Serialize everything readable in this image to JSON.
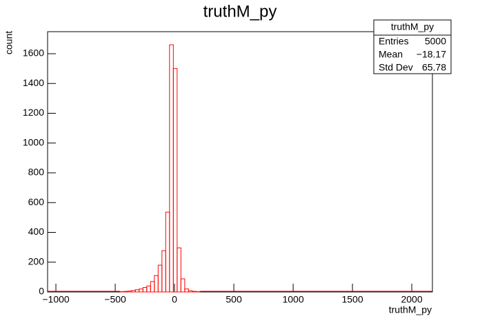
{
  "chart_data": {
    "type": "histogram",
    "title": "truthM_py",
    "x_label": "truthM_py",
    "y_label": "count",
    "color": "#ff0000",
    "bins": [
      -458,
      -426,
      -394,
      -362,
      -330,
      -298,
      -266,
      -234,
      -202,
      -170,
      -138,
      -106,
      -74,
      -42,
      -10,
      22,
      54,
      86,
      118,
      150,
      182,
      214
    ],
    "values": [
      2,
      4,
      6,
      10,
      15,
      20,
      30,
      40,
      70,
      110,
      180,
      277,
      536,
      1660,
      1500,
      296,
      88,
      20,
      8,
      4,
      2
    ],
    "xlim": [
      -1070,
      2174
    ],
    "ylim": [
      0,
      1748
    ],
    "xticks": [
      {
        "value": -1000,
        "label": "−1000"
      },
      {
        "value": -500,
        "label": "−500"
      },
      0,
      500,
      1000,
      1500,
      2000
    ],
    "yticks": [
      0,
      200,
      400,
      600,
      800,
      1000,
      1200,
      1400,
      1600
    ],
    "stats": {
      "title": "truthM_py",
      "rows": [
        [
          "Entries",
          "5000"
        ],
        [
          "Mean",
          "−18.17"
        ],
        [
          "Std Dev",
          "65.78"
        ]
      ]
    }
  }
}
